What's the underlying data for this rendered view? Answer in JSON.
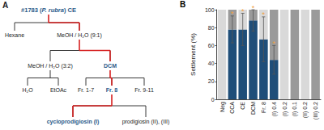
{
  "panels": {
    "a": "A",
    "b": "B"
  },
  "diagram": {
    "nodes": [
      {
        "parts": [
          "#1783 (",
          "P. rubra",
          ") CE"
        ],
        "emphasis": true
      },
      {
        "label": "Hexane"
      },
      {
        "label": "MeOH / H₂O (9:1)"
      },
      {
        "label": "MeOH / H₂O (3:2)"
      },
      {
        "label": "DCM",
        "emphasis": true
      },
      {
        "label": "H₂O"
      },
      {
        "label": "EtOAc"
      },
      {
        "label": "Fr. 1-7"
      },
      {
        "label": "Fr. 8",
        "emphasis": true
      },
      {
        "label": "Fr. 9-11"
      },
      {
        "label": "cycloprodigiosin (I)",
        "emphasis": true
      },
      {
        "label": "prodigiosin (II), (III)"
      }
    ],
    "splits": [
      {
        "from": 0,
        "to": [
          1,
          2
        ],
        "highlight": 2
      },
      {
        "from": 2,
        "to": [
          3,
          4
        ],
        "highlight": 4
      },
      {
        "from": 3,
        "to": [
          5,
          6
        ]
      },
      {
        "from": 4,
        "to": [
          7,
          8,
          9
        ],
        "highlight": 8
      },
      {
        "from": 8,
        "to": [
          10,
          11
        ],
        "highlight": 10
      }
    ]
  },
  "chart_data": {
    "type": "bar",
    "y_label": "Settlement (%)",
    "categories": [
      "Neg",
      "CCA",
      "CE",
      "DCM",
      "Fr. 8",
      "(I) 0.4",
      "(I) 0.2",
      "(I) 0.1",
      "(II) 0.2",
      "(III) 0.2"
    ],
    "stacked": true,
    "series": [
      {
        "color": "#1f4e79",
        "values": [
          0,
          78,
          78,
          88,
          67,
          44,
          0,
          0,
          0,
          0
        ],
        "errors": [
          null,
          15,
          18,
          12,
          25,
          16,
          null,
          null,
          null,
          null
        ],
        "significance": [
          null,
          "*",
          "*",
          "*",
          "*",
          "*",
          null,
          null,
          null,
          null
        ]
      },
      {
        "colors": [
          "#d9d9d9",
          "#9a9a9a",
          "#d9d9d9",
          "#9a9a9a",
          "#d9d9d9",
          "#9a9a9a",
          "#d9d9d9",
          "#9a9a9a",
          "#d9d9d9",
          "#9a9a9a"
        ],
        "values": [
          100,
          22,
          22,
          12,
          33,
          56,
          100,
          100,
          100,
          100
        ]
      }
    ],
    "ylim": [
      0,
      100
    ],
    "yticks": [
      0,
      20,
      40,
      60,
      80,
      100
    ],
    "grid": false
  }
}
